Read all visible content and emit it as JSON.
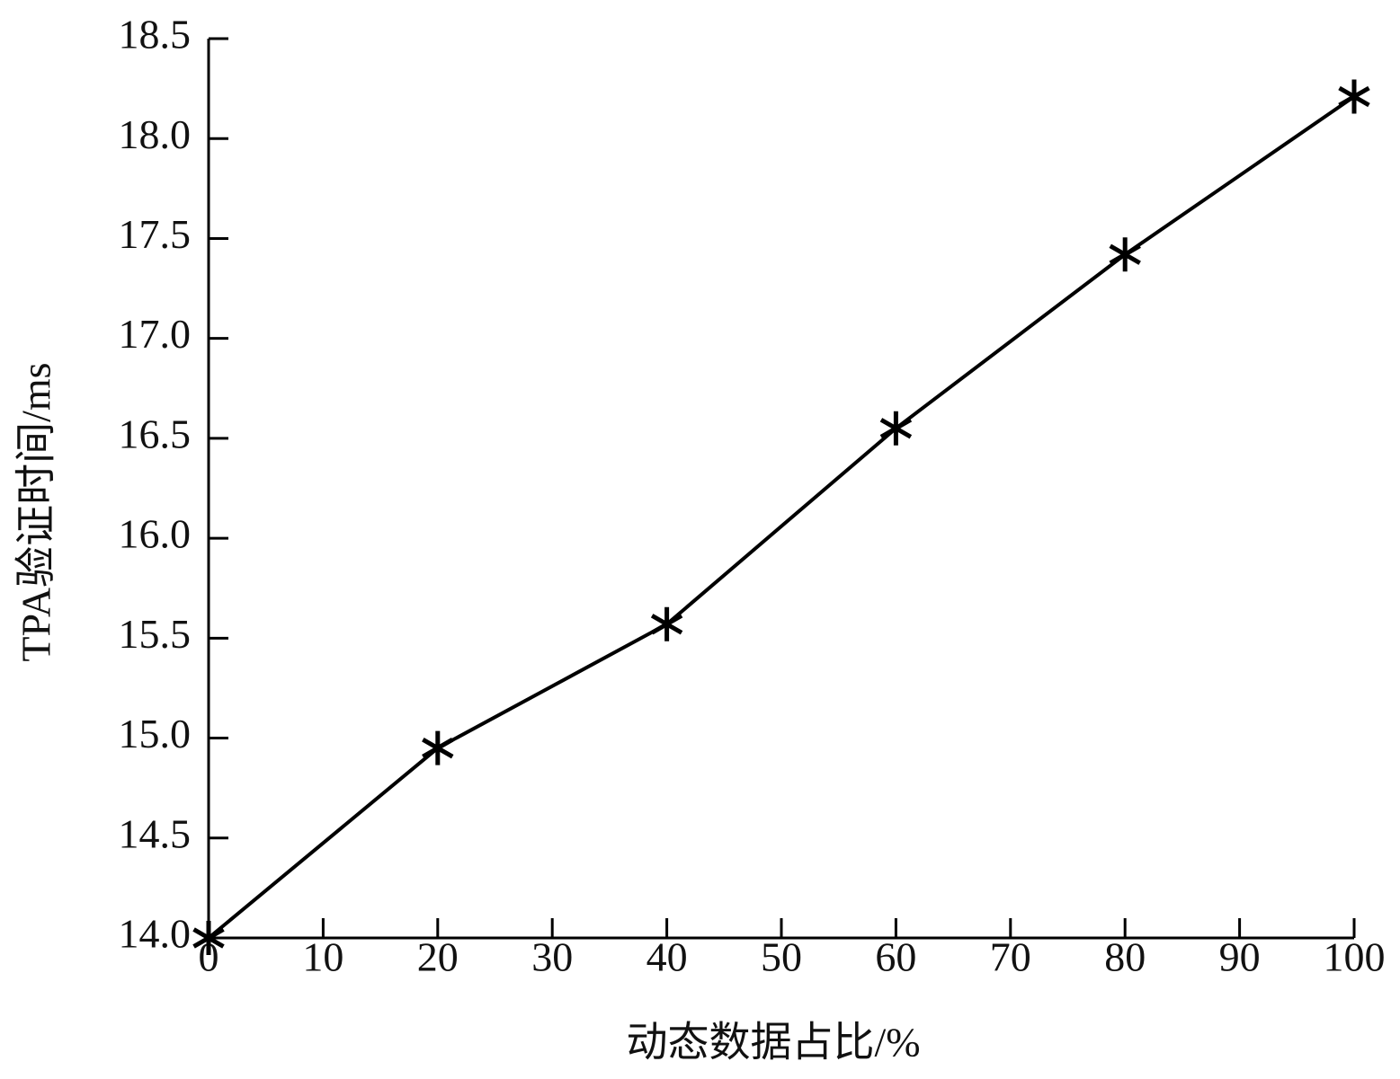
{
  "chart_data": {
    "type": "line",
    "x_label": "动态数据占比/%",
    "y_label": "TPA验证时间/ms",
    "x": [
      0,
      20,
      40,
      60,
      80,
      100
    ],
    "series": [
      {
        "color": "#000000",
        "values": [
          14.0,
          14.95,
          15.57,
          16.55,
          17.42,
          18.21
        ]
      }
    ],
    "xlim": [
      0,
      100
    ],
    "xticks": [
      0,
      10,
      20,
      30,
      40,
      50,
      60,
      70,
      80,
      90,
      100
    ],
    "ylim": [
      14.0,
      18.5
    ],
    "yticks": [
      {
        "value": 14.0,
        "label": "14.0"
      },
      14.5,
      {
        "value": 15.0,
        "label": "15.0"
      },
      15.5,
      {
        "value": 16.0,
        "label": "16.0"
      },
      16.5,
      {
        "value": 17.0,
        "label": "17.0"
      },
      17.5,
      {
        "value": 18.0,
        "label": "18.0"
      },
      18.5
    ],
    "marker": "asterisk"
  }
}
